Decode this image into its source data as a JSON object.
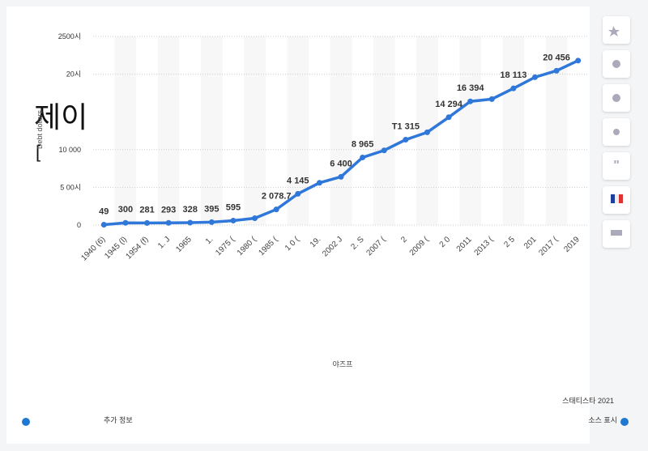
{
  "chart_data": {
    "type": "line",
    "overlay_title": "제이",
    "overlay_bracket": "[",
    "y_axis_label": "Debt dollars",
    "x_axis_label": "야즈프",
    "categories": [
      "1940 (6)",
      "1945 (l)",
      "1954 (f)",
      "1. J",
      "1965",
      "1.",
      "1975 (",
      "1980 (",
      "1985 (",
      "1 0 (",
      "19.",
      "2002 J",
      "2. S",
      "2007 (",
      "2",
      "2009 (",
      "2 0",
      "2011 ",
      "2013 (",
      "2 5",
      "201",
      "2017 (",
      "2019"
    ],
    "series": [
      {
        "name": "Debt",
        "color": "#2f77d8",
        "values": [
          49,
          300,
          281,
          293,
          328,
          395,
          595,
          909,
          2078.7,
          4145,
          5600,
          6400,
          8965,
          9900,
          11315,
          12300,
          14294,
          16394,
          16700,
          18113,
          19600,
          20456,
          21800
        ],
        "value_labels": [
          "49",
          "300",
          "281",
          "293",
          "328",
          "395",
          "595",
          null,
          "2 078.7",
          "4 145",
          null,
          "6 400",
          "8 965",
          null,
          "T1 315",
          null,
          "14 294",
          "16 394",
          null,
          "18 113",
          null,
          "20 456",
          null
        ]
      }
    ],
    "ylim": [
      0,
      25000
    ],
    "yticks": [
      0,
      {
        "value": 5000,
        "label": "5  00시"
      },
      {
        "value": 10000,
        "label": "10 000"
      },
      {
        "value": 20000,
        "label": "20시"
      },
      {
        "value": 25000,
        "label": "2500시"
      }
    ],
    "grid": true,
    "footer": {
      "copyright": "스태티스타 2021",
      "more_info": "추가 정보",
      "show_source": "소스 표시"
    }
  }
}
